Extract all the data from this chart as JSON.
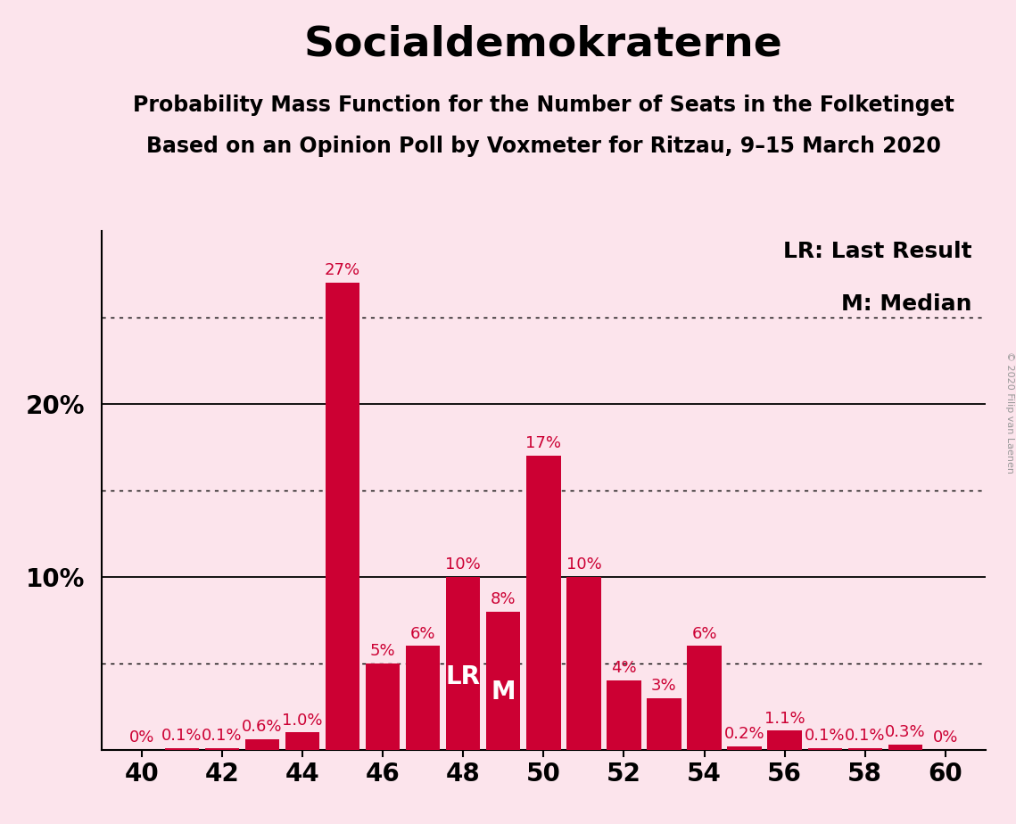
{
  "title": "Socialdemokraterne",
  "subtitle1": "Probability Mass Function for the Number of Seats in the Folketinget",
  "subtitle2": "Based on an Opinion Poll by Voxmeter for Ritzau, 9–15 March 2020",
  "copyright": "© 2020 Filip van Laenen",
  "legend_lr": "LR: Last Result",
  "legend_m": "M: Median",
  "background_color": "#fce4ec",
  "bar_color": "#cc0033",
  "seats": [
    40,
    41,
    42,
    43,
    44,
    45,
    46,
    47,
    48,
    49,
    50,
    51,
    52,
    53,
    54,
    55,
    56,
    57,
    58,
    59,
    60
  ],
  "probabilities": [
    0.0,
    0.1,
    0.1,
    0.6,
    1.0,
    27.0,
    5.0,
    6.0,
    10.0,
    8.0,
    17.0,
    10.0,
    4.0,
    3.0,
    6.0,
    0.2,
    1.1,
    0.1,
    0.1,
    0.3,
    0.0
  ],
  "labels": [
    "0%",
    "0.1%",
    "0.1%",
    "0.6%",
    "1.0%",
    "27%",
    "5%",
    "6%",
    "10%",
    "8%",
    "17%",
    "10%",
    "4%",
    "3%",
    "6%",
    "0.2%",
    "1.1%",
    "0.1%",
    "0.1%",
    "0.3%",
    "0%"
  ],
  "lr_seat": 48,
  "median_seat": 49,
  "xlim": [
    39.0,
    61.0
  ],
  "ylim": [
    0,
    30
  ],
  "xticks": [
    40,
    42,
    44,
    46,
    48,
    50,
    52,
    54,
    56,
    58,
    60
  ],
  "solid_gridlines": [
    10,
    20
  ],
  "dotted_gridlines": [
    5,
    15,
    25
  ],
  "ytick_positions": [
    10,
    20
  ],
  "ytick_labels": [
    "10%",
    "20%"
  ],
  "title_fontsize": 34,
  "subtitle_fontsize": 17,
  "tick_fontsize": 20,
  "bar_label_fontsize": 13,
  "legend_fontsize": 18,
  "copyright_fontsize": 8
}
